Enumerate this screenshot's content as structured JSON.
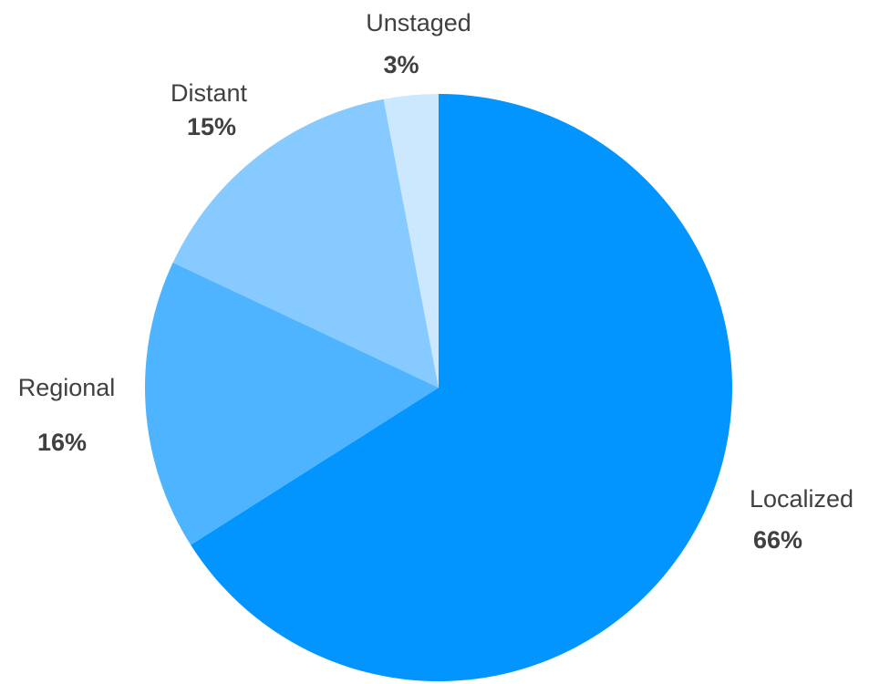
{
  "chart_data": {
    "type": "pie",
    "title": "",
    "slices": [
      {
        "label": "Localized",
        "value": 66,
        "value_label": "66%",
        "color": "#0395FF"
      },
      {
        "label": "Regional",
        "value": 16,
        "value_label": "16%",
        "color": "#4FB4FF"
      },
      {
        "label": "Distant",
        "value": 15,
        "value_label": "15%",
        "color": "#86CAFF"
      },
      {
        "label": "Unstaged",
        "value": 3,
        "value_label": "3%",
        "color": "#CCE8FF"
      }
    ],
    "start_angle_deg": 0,
    "direction": "clockwise",
    "legend": "none"
  }
}
